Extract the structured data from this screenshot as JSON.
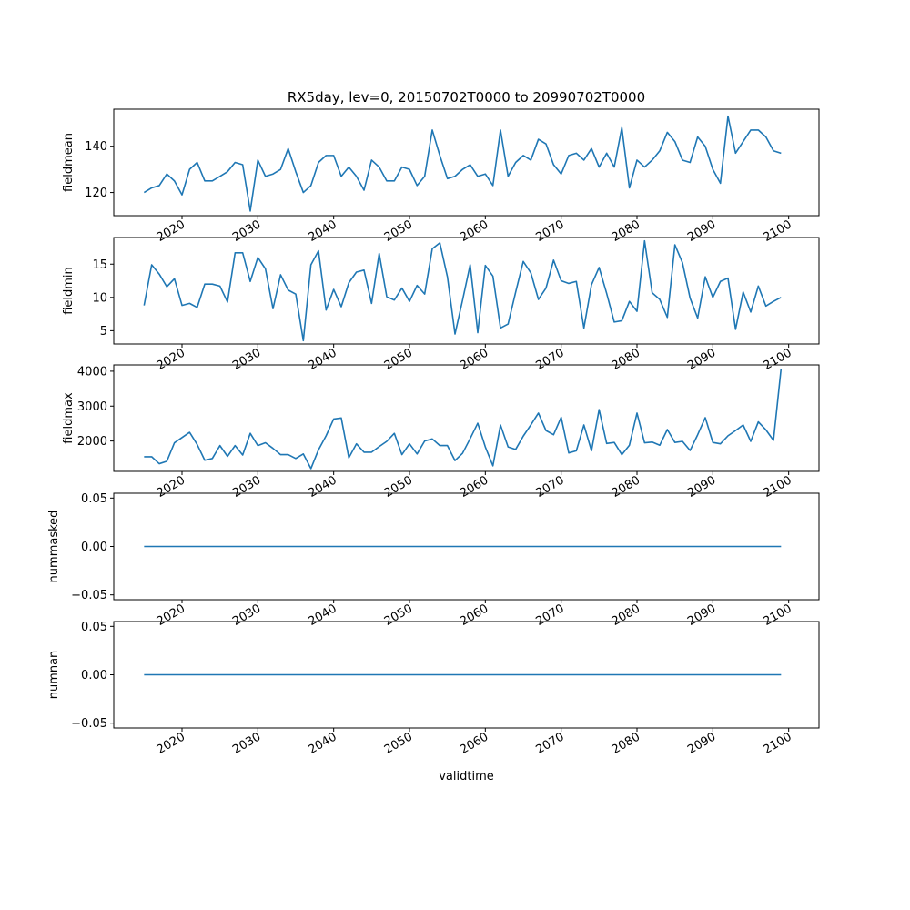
{
  "title": "RX5day, lev=0, 20150702T0000 to 20990702T0000",
  "xlabel": "validtime",
  "line_color": "#1f77b4",
  "chart_data": [
    {
      "type": "line",
      "ylabel": "fieldmean",
      "xlim": [
        2011,
        2104
      ],
      "ylim": [
        110,
        156
      ],
      "x_ticks": [
        "2020",
        "2030",
        "2040",
        "2050",
        "2060",
        "2070",
        "2080",
        "2090",
        "2100"
      ],
      "y_ticks": [
        "120",
        "140"
      ],
      "y_tick_values": [
        120,
        140
      ],
      "x": [
        2015,
        2016,
        2017,
        2018,
        2019,
        2020,
        2021,
        2022,
        2023,
        2024,
        2025,
        2026,
        2027,
        2028,
        2029,
        2030,
        2031,
        2032,
        2033,
        2034,
        2035,
        2036,
        2037,
        2038,
        2039,
        2040,
        2041,
        2042,
        2043,
        2044,
        2045,
        2046,
        2047,
        2048,
        2049,
        2050,
        2051,
        2052,
        2053,
        2054,
        2055,
        2056,
        2057,
        2058,
        2059,
        2060,
        2061,
        2062,
        2063,
        2064,
        2065,
        2066,
        2067,
        2068,
        2069,
        2070,
        2071,
        2072,
        2073,
        2074,
        2075,
        2076,
        2077,
        2078,
        2079,
        2080,
        2081,
        2082,
        2083,
        2084,
        2085,
        2086,
        2087,
        2088,
        2089,
        2090,
        2091,
        2092,
        2093,
        2094,
        2095,
        2096,
        2097,
        2098,
        2099
      ],
      "values": [
        120,
        122,
        123,
        128,
        125,
        119,
        130,
        133,
        125,
        125,
        127,
        129,
        133,
        132,
        112,
        134,
        127,
        128,
        130,
        139,
        129,
        120,
        123,
        133,
        136,
        136,
        127,
        131,
        127,
        121,
        134,
        131,
        125,
        125,
        131,
        130,
        123,
        127,
        147,
        136,
        126,
        127,
        130,
        132,
        127,
        128,
        123,
        147,
        127,
        133,
        136,
        134,
        143,
        141,
        132,
        128,
        136,
        137,
        134,
        139,
        131,
        137,
        131,
        148,
        122,
        134,
        131,
        134,
        138,
        146,
        142,
        134,
        133,
        144,
        140,
        130,
        124,
        153,
        137,
        142,
        147,
        147,
        144,
        138,
        137
      ]
    },
    {
      "type": "line",
      "ylabel": "fieldmin",
      "xlim": [
        2011,
        2104
      ],
      "ylim": [
        3,
        19
      ],
      "x_ticks": [
        "2020",
        "2030",
        "2040",
        "2050",
        "2060",
        "2070",
        "2080",
        "2090",
        "2100"
      ],
      "y_ticks": [
        "5",
        "10",
        "15"
      ],
      "y_tick_values": [
        5,
        10,
        15
      ],
      "x": [
        2015,
        2016,
        2017,
        2018,
        2019,
        2020,
        2021,
        2022,
        2023,
        2024,
        2025,
        2026,
        2027,
        2028,
        2029,
        2030,
        2031,
        2032,
        2033,
        2034,
        2035,
        2036,
        2037,
        2038,
        2039,
        2040,
        2041,
        2042,
        2043,
        2044,
        2045,
        2046,
        2047,
        2048,
        2049,
        2050,
        2051,
        2052,
        2053,
        2054,
        2055,
        2056,
        2057,
        2058,
        2059,
        2060,
        2061,
        2062,
        2063,
        2064,
        2065,
        2066,
        2067,
        2068,
        2069,
        2070,
        2071,
        2072,
        2073,
        2074,
        2075,
        2076,
        2077,
        2078,
        2079,
        2080,
        2081,
        2082,
        2083,
        2084,
        2085,
        2086,
        2087,
        2088,
        2089,
        2090,
        2091,
        2092,
        2093,
        2094,
        2095,
        2096,
        2097,
        2098,
        2099
      ],
      "values": [
        8.8,
        14.9,
        13.5,
        11.6,
        12.8,
        8.8,
        9.1,
        8.5,
        12.0,
        12.0,
        11.7,
        9.3,
        16.7,
        16.7,
        12.4,
        16.0,
        14.3,
        8.3,
        13.4,
        11.1,
        10.5,
        3.5,
        14.9,
        17.0,
        8.1,
        11.2,
        8.6,
        12.2,
        13.8,
        14.1,
        9.1,
        16.6,
        10.1,
        9.6,
        11.4,
        9.4,
        11.8,
        10.5,
        17.3,
        18.2,
        13.1,
        4.5,
        9.6,
        14.9,
        4.7,
        14.8,
        13.2,
        5.4,
        6.0,
        10.8,
        15.4,
        13.7,
        9.7,
        11.4,
        15.6,
        12.5,
        12.1,
        12.4,
        5.4,
        11.9,
        14.5,
        10.6,
        6.3,
        6.5,
        9.4,
        7.9,
        18.5,
        10.7,
        9.7,
        7.0,
        17.9,
        15.2,
        9.9,
        6.9,
        13.1,
        10.0,
        12.4,
        12.9,
        5.2,
        10.8,
        7.8,
        11.7,
        8.7,
        9.4,
        10.0
      ]
    },
    {
      "type": "line",
      "ylabel": "fieldmax",
      "xlim": [
        2011,
        2104
      ],
      "ylim": [
        1130,
        4180
      ],
      "x_ticks": [
        "2020",
        "2030",
        "2040",
        "2050",
        "2060",
        "2070",
        "2080",
        "2090",
        "2100"
      ],
      "y_ticks": [
        "2000",
        "3000",
        "4000"
      ],
      "y_tick_values": [
        2000,
        3000,
        4000
      ],
      "x": [
        2015,
        2016,
        2017,
        2018,
        2019,
        2020,
        2021,
        2022,
        2023,
        2024,
        2025,
        2026,
        2027,
        2028,
        2029,
        2030,
        2031,
        2032,
        2033,
        2034,
        2035,
        2036,
        2037,
        2038,
        2039,
        2040,
        2041,
        2042,
        2043,
        2044,
        2045,
        2046,
        2047,
        2048,
        2049,
        2050,
        2051,
        2052,
        2053,
        2054,
        2055,
        2056,
        2057,
        2058,
        2059,
        2060,
        2061,
        2062,
        2063,
        2064,
        2065,
        2066,
        2067,
        2068,
        2069,
        2070,
        2071,
        2072,
        2073,
        2074,
        2075,
        2076,
        2077,
        2078,
        2079,
        2080,
        2081,
        2082,
        2083,
        2084,
        2085,
        2086,
        2087,
        2088,
        2089,
        2090,
        2091,
        2092,
        2093,
        2094,
        2095,
        2096,
        2097,
        2098,
        2099
      ],
      "values": [
        1550,
        1550,
        1350,
        1420,
        1950,
        2100,
        2250,
        1900,
        1450,
        1500,
        1870,
        1560,
        1870,
        1600,
        2220,
        1870,
        1950,
        1790,
        1610,
        1610,
        1500,
        1630,
        1210,
        1750,
        2150,
        2630,
        2660,
        1520,
        1920,
        1680,
        1680,
        1840,
        1990,
        2220,
        1610,
        1920,
        1630,
        2000,
        2060,
        1870,
        1870,
        1440,
        1650,
        2070,
        2510,
        1830,
        1290,
        2460,
        1830,
        1760,
        2140,
        2460,
        2800,
        2300,
        2180,
        2680,
        1660,
        1720,
        2460,
        1720,
        2900,
        1930,
        1960,
        1610,
        1880,
        2800,
        1950,
        1970,
        1880,
        2330,
        1960,
        1990,
        1730,
        2180,
        2670,
        1960,
        1920,
        2150,
        2300,
        2460,
        1990,
        2550,
        2320,
        2020,
        4070
      ]
    },
    {
      "type": "line",
      "ylabel": "nummasked",
      "xlim": [
        2011,
        2104
      ],
      "ylim": [
        -0.055,
        0.055
      ],
      "x_ticks": [
        "2020",
        "2030",
        "2040",
        "2050",
        "2060",
        "2070",
        "2080",
        "2090",
        "2100"
      ],
      "y_ticks": [
        "−0.05",
        "0.00",
        "0.05"
      ],
      "y_tick_values": [
        -0.05,
        0.0,
        0.05
      ],
      "x": [
        2015,
        2099
      ],
      "values": [
        0,
        0
      ]
    },
    {
      "type": "line",
      "ylabel": "numnan",
      "xlim": [
        2011,
        2104
      ],
      "ylim": [
        -0.055,
        0.055
      ],
      "x_ticks": [
        "2020",
        "2030",
        "2040",
        "2050",
        "2060",
        "2070",
        "2080",
        "2090",
        "2100"
      ],
      "y_ticks": [
        "−0.05",
        "0.00",
        "0.05"
      ],
      "y_tick_values": [
        -0.05,
        0.0,
        0.05
      ],
      "x": [
        2015,
        2099
      ],
      "values": [
        0,
        0
      ]
    }
  ]
}
